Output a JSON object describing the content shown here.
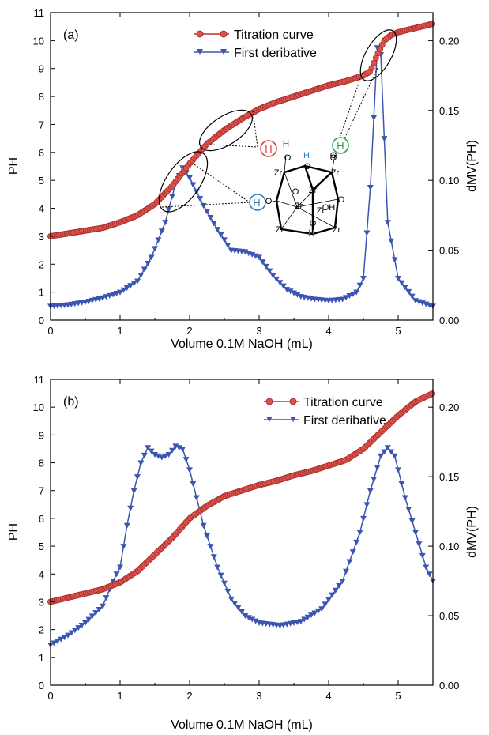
{
  "colors": {
    "titration": "#c0302a",
    "titration_marker": "#d9534f",
    "derivative": "#3a56b0",
    "green": "#2a9d48",
    "red": "#d63a30",
    "blue": "#2b7bbf"
  },
  "chart_data": [
    {
      "type": "line",
      "panel_label": "(a)",
      "xlabel": "Volume 0.1M NaOH (mL)",
      "ylabel": "PH",
      "y2label": "dMV(PH)",
      "xlim": [
        0,
        5.5
      ],
      "ylim": [
        0,
        11
      ],
      "y2lim": [
        0,
        0.22
      ],
      "x_ticks": [
        "0",
        "1",
        "2",
        "3",
        "4",
        "5"
      ],
      "y_ticks": [
        "0",
        "1",
        "2",
        "3",
        "4",
        "5",
        "6",
        "7",
        "8",
        "9",
        "10",
        "11"
      ],
      "y2_ticks": [
        "0.00",
        "0.05",
        "0.10",
        "0.15",
        "0.20"
      ],
      "legend_position": "top-center",
      "series": [
        {
          "name": "Titration curve",
          "axis": "left",
          "marker": "circle",
          "points": [
            [
              0,
              3.0
            ],
            [
              0.25,
              3.1
            ],
            [
              0.5,
              3.2
            ],
            [
              0.75,
              3.3
            ],
            [
              1.0,
              3.5
            ],
            [
              1.25,
              3.75
            ],
            [
              1.5,
              4.15
            ],
            [
              1.75,
              4.8
            ],
            [
              2.0,
              5.6
            ],
            [
              2.25,
              6.3
            ],
            [
              2.5,
              6.8
            ],
            [
              2.75,
              7.2
            ],
            [
              3.0,
              7.55
            ],
            [
              3.25,
              7.8
            ],
            [
              3.5,
              8.0
            ],
            [
              3.75,
              8.2
            ],
            [
              4.0,
              8.4
            ],
            [
              4.25,
              8.55
            ],
            [
              4.5,
              8.75
            ],
            [
              4.6,
              8.9
            ],
            [
              4.7,
              9.5
            ],
            [
              4.8,
              10.0
            ],
            [
              4.9,
              10.2
            ],
            [
              5.0,
              10.3
            ],
            [
              5.25,
              10.45
            ],
            [
              5.5,
              10.6
            ]
          ]
        },
        {
          "name": "First deribative",
          "axis": "right",
          "marker": "triangle-down",
          "points": [
            [
              0,
              0.01
            ],
            [
              0.25,
              0.011
            ],
            [
              0.5,
              0.013
            ],
            [
              0.75,
              0.016
            ],
            [
              1.0,
              0.02
            ],
            [
              1.25,
              0.028
            ],
            [
              1.45,
              0.045
            ],
            [
              1.65,
              0.07
            ],
            [
              1.8,
              0.098
            ],
            [
              1.9,
              0.109
            ],
            [
              2.0,
              0.102
            ],
            [
              2.2,
              0.082
            ],
            [
              2.4,
              0.065
            ],
            [
              2.6,
              0.05
            ],
            [
              2.8,
              0.049
            ],
            [
              3.0,
              0.045
            ],
            [
              3.2,
              0.032
            ],
            [
              3.4,
              0.022
            ],
            [
              3.6,
              0.017
            ],
            [
              3.8,
              0.015
            ],
            [
              4.0,
              0.014
            ],
            [
              4.2,
              0.015
            ],
            [
              4.4,
              0.02
            ],
            [
              4.5,
              0.03
            ],
            [
              4.6,
              0.095
            ],
            [
              4.7,
              0.195
            ],
            [
              4.75,
              0.19
            ],
            [
              4.85,
              0.07
            ],
            [
              5.0,
              0.03
            ],
            [
              5.25,
              0.014
            ],
            [
              5.5,
              0.01
            ]
          ]
        }
      ],
      "annotations": [
        "H",
        "H",
        "O",
        "Zr",
        "O",
        "Zr",
        "O",
        "H",
        "Zr",
        "O",
        "Zr",
        "O",
        "Zr",
        "OH",
        "O",
        "H",
        "Zr",
        "O",
        "Zr",
        "H",
        "H",
        "O"
      ]
    },
    {
      "type": "line",
      "panel_label": "(b)",
      "xlabel": "Volume 0.1M NaOH (mL)",
      "ylabel": "PH",
      "y2label": "dMV(PH)",
      "xlim": [
        0,
        5.5
      ],
      "ylim": [
        0,
        11
      ],
      "y2lim": [
        0,
        0.22
      ],
      "x_ticks": [
        "0",
        "1",
        "2",
        "3",
        "4",
        "5"
      ],
      "y_ticks": [
        "0",
        "1",
        "2",
        "3",
        "4",
        "5",
        "6",
        "7",
        "8",
        "9",
        "10",
        "11"
      ],
      "y2_ticks": [
        "0.00",
        "0.05",
        "0.10",
        "0.15",
        "0.20"
      ],
      "legend_position": "top-center",
      "series": [
        {
          "name": "Titration curve",
          "axis": "left",
          "marker": "circle",
          "points": [
            [
              0,
              3.0
            ],
            [
              0.25,
              3.15
            ],
            [
              0.5,
              3.3
            ],
            [
              0.75,
              3.45
            ],
            [
              1.0,
              3.7
            ],
            [
              1.25,
              4.1
            ],
            [
              1.5,
              4.7
            ],
            [
              1.75,
              5.3
            ],
            [
              2.0,
              6.0
            ],
            [
              2.25,
              6.45
            ],
            [
              2.5,
              6.8
            ],
            [
              2.75,
              7.0
            ],
            [
              3.0,
              7.2
            ],
            [
              3.25,
              7.35
            ],
            [
              3.5,
              7.55
            ],
            [
              3.75,
              7.7
            ],
            [
              4.0,
              7.9
            ],
            [
              4.25,
              8.1
            ],
            [
              4.5,
              8.5
            ],
            [
              4.75,
              9.1
            ],
            [
              5.0,
              9.7
            ],
            [
              5.25,
              10.2
            ],
            [
              5.5,
              10.5
            ]
          ]
        },
        {
          "name": "First deribative",
          "axis": "right",
          "marker": "triangle-down",
          "points": [
            [
              0,
              0.029
            ],
            [
              0.25,
              0.036
            ],
            [
              0.5,
              0.045
            ],
            [
              0.75,
              0.057
            ],
            [
              0.9,
              0.075
            ],
            [
              1.0,
              0.085
            ],
            [
              1.1,
              0.115
            ],
            [
              1.2,
              0.14
            ],
            [
              1.3,
              0.16
            ],
            [
              1.4,
              0.171
            ],
            [
              1.5,
              0.166
            ],
            [
              1.6,
              0.164
            ],
            [
              1.7,
              0.166
            ],
            [
              1.8,
              0.172
            ],
            [
              1.9,
              0.17
            ],
            [
              2.0,
              0.155
            ],
            [
              2.1,
              0.135
            ],
            [
              2.2,
              0.115
            ],
            [
              2.4,
              0.085
            ],
            [
              2.6,
              0.062
            ],
            [
              2.8,
              0.05
            ],
            [
              3.0,
              0.045
            ],
            [
              3.3,
              0.043
            ],
            [
              3.6,
              0.046
            ],
            [
              3.9,
              0.055
            ],
            [
              4.2,
              0.075
            ],
            [
              4.45,
              0.11
            ],
            [
              4.6,
              0.14
            ],
            [
              4.75,
              0.165
            ],
            [
              4.85,
              0.171
            ],
            [
              4.95,
              0.165
            ],
            [
              5.1,
              0.135
            ],
            [
              5.25,
              0.11
            ],
            [
              5.4,
              0.085
            ],
            [
              5.5,
              0.075
            ]
          ]
        }
      ]
    }
  ]
}
